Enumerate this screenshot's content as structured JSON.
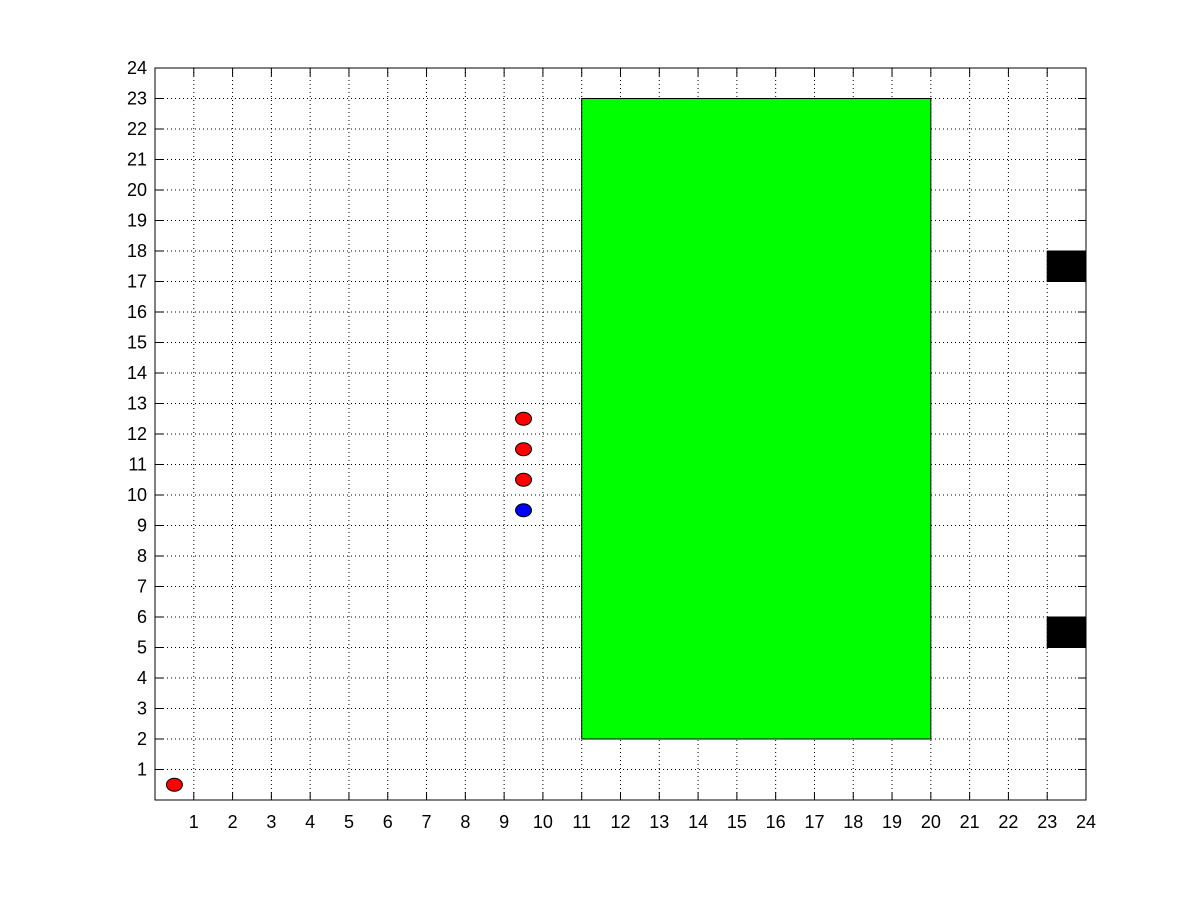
{
  "chart_data": {
    "type": "scatter",
    "title": "",
    "xlabel": "",
    "ylabel": "",
    "xlim": [
      0,
      24
    ],
    "ylim": [
      0,
      24
    ],
    "xticks": [
      "1",
      "2",
      "3",
      "4",
      "5",
      "6",
      "7",
      "8",
      "9",
      "10",
      "11",
      "12",
      "13",
      "14",
      "15",
      "16",
      "17",
      "18",
      "19",
      "20",
      "21",
      "22",
      "23",
      "24"
    ],
    "yticks": [
      "1",
      "2",
      "3",
      "4",
      "5",
      "6",
      "7",
      "8",
      "9",
      "10",
      "11",
      "12",
      "13",
      "14",
      "15",
      "16",
      "17",
      "18",
      "19",
      "20",
      "21",
      "22",
      "23",
      "24"
    ],
    "grid": true,
    "colors": {
      "red": "#ff0000",
      "blue": "#0000ff",
      "green": "#00ff00",
      "black": "#000000"
    },
    "rectangles": [
      {
        "x": [
          11,
          20
        ],
        "y": [
          2,
          23
        ],
        "color": "#00ff00"
      },
      {
        "x": [
          23,
          24
        ],
        "y": [
          17,
          18
        ],
        "color": "#000000"
      },
      {
        "x": [
          23,
          24
        ],
        "y": [
          5,
          6
        ],
        "color": "#000000"
      }
    ],
    "points": [
      {
        "x": 0.5,
        "y": 0.5,
        "color": "#ff0000"
      },
      {
        "x": 9.5,
        "y": 12.5,
        "color": "#ff0000"
      },
      {
        "x": 9.5,
        "y": 11.5,
        "color": "#ff0000"
      },
      {
        "x": 9.5,
        "y": 10.5,
        "color": "#ff0000"
      },
      {
        "x": 9.5,
        "y": 9.5,
        "color": "#0000ff"
      }
    ]
  }
}
